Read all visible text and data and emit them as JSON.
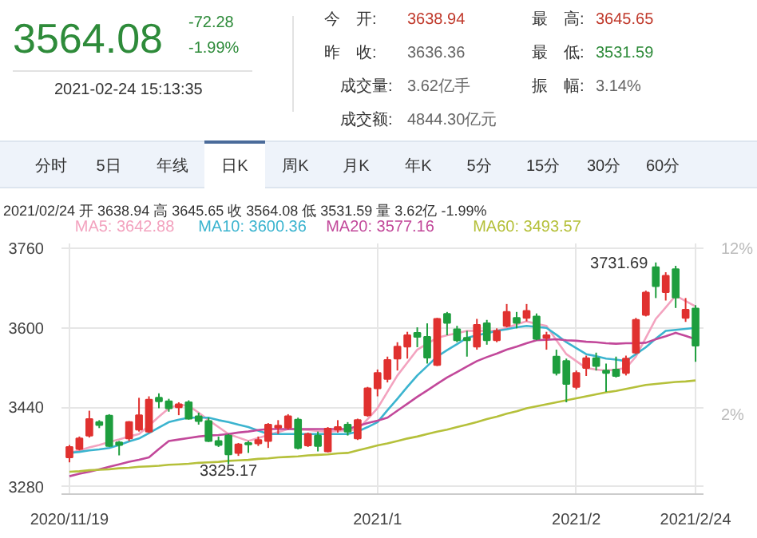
{
  "chart_data": {
    "type": "candlestick",
    "categories": [
      "2020/11/19",
      null,
      null,
      null,
      null,
      null,
      null,
      null,
      null,
      null,
      null,
      null,
      null,
      null,
      null,
      null,
      null,
      null,
      null,
      null,
      null,
      null,
      null,
      null,
      null,
      null,
      null,
      null,
      null,
      null,
      null,
      "2021/1",
      null,
      null,
      null,
      null,
      null,
      null,
      null,
      null,
      null,
      null,
      null,
      null,
      null,
      null,
      null,
      null,
      null,
      null,
      null,
      "2021/2",
      null,
      null,
      null,
      null,
      null,
      null,
      null,
      null,
      null,
      null,
      null,
      "2021/2/24"
    ],
    "ohlc": [
      [
        3339,
        3364,
        3329,
        3360
      ],
      [
        3356,
        3381,
        3353,
        3377
      ],
      [
        3383,
        3433,
        3379,
        3416
      ],
      [
        3410,
        3414,
        3398,
        3404
      ],
      [
        3423,
        3426,
        3360,
        3362
      ],
      [
        3369,
        3372,
        3343,
        3364
      ],
      [
        3377,
        3412,
        3372,
        3410
      ],
      [
        3395,
        3459,
        3391,
        3424
      ],
      [
        3391,
        3462,
        3388,
        3455
      ],
      [
        3459,
        3468,
        3438,
        3452
      ],
      [
        3452,
        3457,
        3431,
        3438
      ],
      [
        3440,
        3450,
        3424,
        3446
      ],
      [
        3450,
        3454,
        3415,
        3417
      ],
      [
        3422,
        3429,
        3405,
        3412
      ],
      [
        3412,
        3419,
        3370,
        3372
      ],
      [
        3372,
        3381,
        3360,
        3364
      ],
      [
        3383,
        3386,
        3325.17,
        3345
      ],
      [
        3348,
        3368,
        3342,
        3365
      ],
      [
        3368,
        3372,
        3348,
        3365
      ],
      [
        3367,
        3381,
        3362,
        3374
      ],
      [
        3372,
        3408,
        3358,
        3405
      ],
      [
        3399,
        3414,
        3386,
        3403
      ],
      [
        3399,
        3426,
        3395,
        3422
      ],
      [
        3415,
        3419,
        3355,
        3358
      ],
      [
        3363,
        3389,
        3360,
        3386
      ],
      [
        3383,
        3391,
        3351,
        3362
      ],
      [
        3351,
        3400,
        3349,
        3397
      ],
      [
        3395,
        3414,
        3389,
        3400
      ],
      [
        3405,
        3410,
        3383,
        3391
      ],
      [
        3377,
        3417,
        3374,
        3414
      ],
      [
        3424,
        3481,
        3421,
        3478
      ],
      [
        3478,
        3516,
        3462,
        3509
      ],
      [
        3497,
        3542,
        3490,
        3535
      ],
      [
        3538,
        3571,
        3514,
        3562
      ],
      [
        3562,
        3592,
        3538,
        3585
      ],
      [
        3590,
        3601,
        3561,
        3582
      ],
      [
        3582,
        3609,
        3528,
        3540
      ],
      [
        3525,
        3620,
        3523,
        3618
      ],
      [
        3628,
        3632,
        3585,
        3610
      ],
      [
        3597,
        3604,
        3571,
        3575
      ],
      [
        3580,
        3594,
        3542,
        3575
      ],
      [
        3562,
        3618,
        3556,
        3606
      ],
      [
        3609,
        3616,
        3566,
        3575
      ],
      [
        3575,
        3599,
        3571,
        3594
      ],
      [
        3604,
        3648,
        3601,
        3632
      ],
      [
        3620,
        3632,
        3599,
        3610
      ],
      [
        3620,
        3648,
        3613,
        3634
      ],
      [
        3623,
        3629,
        3575,
        3578
      ],
      [
        3580,
        3592,
        3556,
        3585
      ],
      [
        3542,
        3556,
        3504,
        3509
      ],
      [
        3533,
        3538,
        3450,
        3487
      ],
      [
        3481,
        3514,
        3476,
        3509
      ],
      [
        3519,
        3544,
        3503,
        3539
      ],
      [
        3539,
        3550,
        3514,
        3523
      ],
      [
        3514,
        3528,
        3471,
        3509
      ],
      [
        3516,
        3542,
        3500,
        3503
      ],
      [
        3509,
        3544,
        3504,
        3538
      ],
      [
        3550,
        3620,
        3547,
        3616
      ],
      [
        3626,
        3675,
        3623,
        3671
      ],
      [
        3722,
        3731.69,
        3660,
        3684
      ],
      [
        3672,
        3712,
        3655,
        3705
      ],
      [
        3718,
        3725,
        3640,
        3661
      ],
      [
        3620,
        3660,
        3612,
        3636.36
      ],
      [
        3638.94,
        3645.65,
        3531.59,
        3564.08
      ]
    ],
    "colors": [
      "#e0312f",
      "#e0312f",
      "#e0312f",
      "#1e9e3e",
      "#1e9e3e",
      "#1e9e3e",
      "#e0312f",
      "#e0312f",
      "#e0312f",
      "#1e9e3e",
      "#1e9e3e",
      "#e0312f",
      "#1e9e3e",
      "#1e9e3e",
      "#1e9e3e",
      "#1e9e3e",
      "#1e9e3e",
      "#e0312f",
      "#1e9e3e",
      "#e0312f",
      "#e0312f",
      "#e0312f",
      "#e0312f",
      "#1e9e3e",
      "#e0312f",
      "#1e9e3e",
      "#e0312f",
      "#e0312f",
      "#1e9e3e",
      "#e0312f",
      "#e0312f",
      "#e0312f",
      "#e0312f",
      "#e0312f",
      "#e0312f",
      "#1e9e3e",
      "#1e9e3e",
      "#e0312f",
      "#1e9e3e",
      "#1e9e3e",
      "#1e9e3e",
      "#e0312f",
      "#1e9e3e",
      "#e0312f",
      "#e0312f",
      "#1e9e3e",
      "#e0312f",
      "#1e9e3e",
      "#e0312f",
      "#1e9e3e",
      "#1e9e3e",
      "#e0312f",
      "#e0312f",
      "#1e9e3e",
      "#1e9e3e",
      "#1e9e3e",
      "#e0312f",
      "#e0312f",
      "#e0312f",
      "#1e9e3e",
      "#e0312f",
      "#1e9e3e",
      "#e0312f",
      "#1e9e3e"
    ],
    "series": [
      {
        "type": "line",
        "name": "MA5: 3642.88",
        "color": "#f3a3bf",
        "values": [
          3348,
          3353,
          3359,
          3364,
          3370,
          3375,
          3381,
          3386,
          3403,
          3421,
          3438,
          3445,
          3443,
          3429,
          3414,
          3400,
          3386,
          3379,
          3372,
          3378,
          3384,
          3390,
          3396,
          3395,
          3394,
          3392,
          3391,
          3392,
          3394,
          3395,
          3416,
          3438,
          3471,
          3504,
          3530,
          3556,
          3568,
          3580,
          3585,
          3589,
          3594,
          3594,
          3594,
          3594,
          3600,
          3607,
          3613,
          3608,
          3604,
          3575,
          3547,
          3533,
          3519,
          3516,
          3514,
          3516,
          3519,
          3542,
          3580,
          3618,
          3641,
          3665,
          3654,
          3643
        ]
      },
      {
        "type": "line",
        "name": "MA10: 3600.36",
        "color": "#3bb4cf",
        "values": [
          3348,
          3350,
          3353,
          3355,
          3358,
          3364,
          3371,
          3377,
          3388,
          3399,
          3410,
          3415,
          3419,
          3419,
          3419,
          3414,
          3410,
          3405,
          3400,
          3393,
          3386,
          3386,
          3386,
          3386,
          3386,
          3386,
          3386,
          3386,
          3386,
          3391,
          3400,
          3410,
          3434,
          3457,
          3481,
          3504,
          3523,
          3542,
          3555,
          3567,
          3580,
          3585,
          3589,
          3594,
          3597,
          3601,
          3604,
          3602,
          3600,
          3586,
          3571,
          3559,
          3547,
          3543,
          3538,
          3536,
          3533,
          3547,
          3561,
          3578,
          3594,
          3596,
          3598,
          3600
        ]
      },
      {
        "type": "line",
        "name": "MA20: 3577.16",
        "color": "#c2489a",
        "values": [
          3301,
          3306,
          3310,
          3315,
          3320,
          3325,
          3330,
          3334,
          3339,
          3356,
          3372,
          3375,
          3378,
          3381,
          3383,
          3384,
          3386,
          3389,
          3391,
          3394,
          3396,
          3396,
          3396,
          3396,
          3396,
          3396,
          3396,
          3396,
          3396,
          3402,
          3408,
          3413,
          3419,
          3433,
          3447,
          3461,
          3474,
          3487,
          3500,
          3511,
          3522,
          3533,
          3541,
          3548,
          3556,
          3562,
          3569,
          3575,
          3576,
          3577,
          3575,
          3574,
          3572,
          3571,
          3569,
          3568,
          3569,
          3569,
          3570,
          3577,
          3583,
          3590,
          3584,
          3577
        ]
      },
      {
        "type": "line",
        "name": "MA60: 3493.57",
        "color": "#b5c03a",
        "values": [
          3310,
          3311,
          3313,
          3314,
          3315,
          3317,
          3318,
          3320,
          3321,
          3322,
          3324,
          3325,
          3326,
          3328,
          3329,
          3330,
          3332,
          3333,
          3334,
          3336,
          3337,
          3339,
          3340,
          3341,
          3343,
          3344,
          3345,
          3347,
          3348,
          3353,
          3358,
          3363,
          3367,
          3372,
          3377,
          3381,
          3386,
          3391,
          3395,
          3400,
          3405,
          3410,
          3416,
          3421,
          3427,
          3432,
          3438,
          3442,
          3446,
          3450,
          3454,
          3458,
          3462,
          3466,
          3470,
          3473,
          3477,
          3481,
          3485,
          3487,
          3489,
          3491,
          3492,
          3494
        ]
      }
    ],
    "ylim": [
      3265,
      3770
    ],
    "yticks": [
      3280,
      3440,
      3600,
      3760
    ],
    "y2lim": [
      -2.7,
      12.4
    ],
    "y2ticks": [
      {
        "value": 2,
        "label": "2%"
      },
      {
        "value": 12,
        "label": "12%"
      }
    ],
    "grid": true,
    "legend": "top",
    "annotations": [
      "3564.08",
      "-72.28",
      "-1.99%",
      "2021-02-24 15:13:35",
      "今　开:",
      "3638.94",
      "昨　收:",
      "3636.36",
      "成交量:",
      "3.62亿手",
      "成交额:",
      "4844.30亿元",
      "最　高:",
      "3645.65",
      "最　低:",
      "3531.59",
      "振　幅:",
      "3.14%",
      "分时",
      "5日",
      "年线",
      "日K",
      "周K",
      "月K",
      "年K",
      "5分",
      "15分",
      "30分",
      "60分",
      "2021/02/24 开 3638.94 高 3645.65 收 3564.08 低 3531.59 量 3.62亿 -1.99%",
      "3731.69",
      "3325.17"
    ]
  }
}
